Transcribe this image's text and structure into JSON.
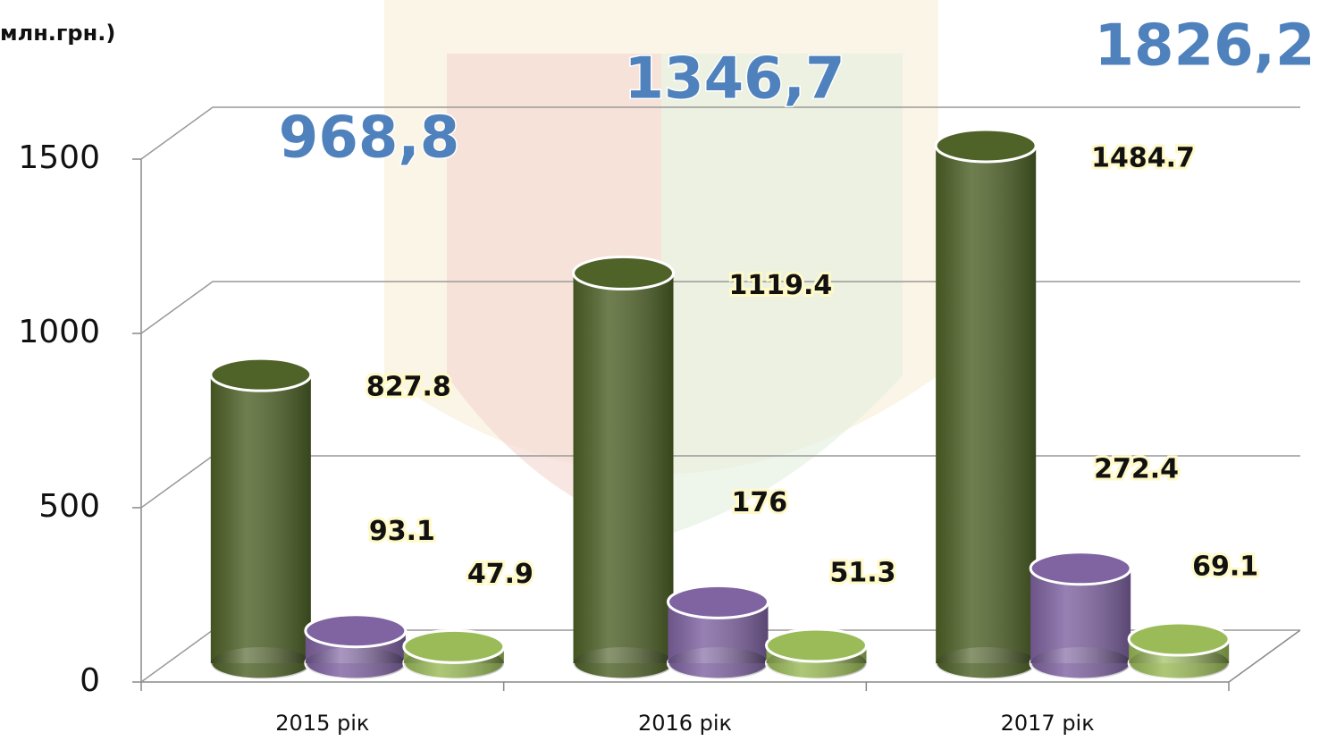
{
  "chart_data": {
    "type": "cylinder-bar",
    "y_axis_label": "млн.грн.)",
    "categories": [
      "2015 рік",
      "2016 рік",
      "2017 рік"
    ],
    "series": [
      {
        "color": "#4f6228",
        "values": [
          827.8,
          1119.4,
          1484.7
        ]
      },
      {
        "color": "#8064a2",
        "values": [
          93.1,
          176,
          272.4
        ]
      },
      {
        "color": "#9bbb59",
        "values": [
          47.9,
          51.3,
          69.1
        ]
      }
    ],
    "totals": {
      "values": [
        968.8,
        1346.7,
        1826.2
      ],
      "value_labels": [
        "968,8",
        "1346,7",
        "1826,2"
      ],
      "color": "#4f81bd"
    },
    "ylim": [
      0,
      1500
    ],
    "yticks": [
      0,
      500,
      1000,
      1500
    ],
    "grid": true
  }
}
